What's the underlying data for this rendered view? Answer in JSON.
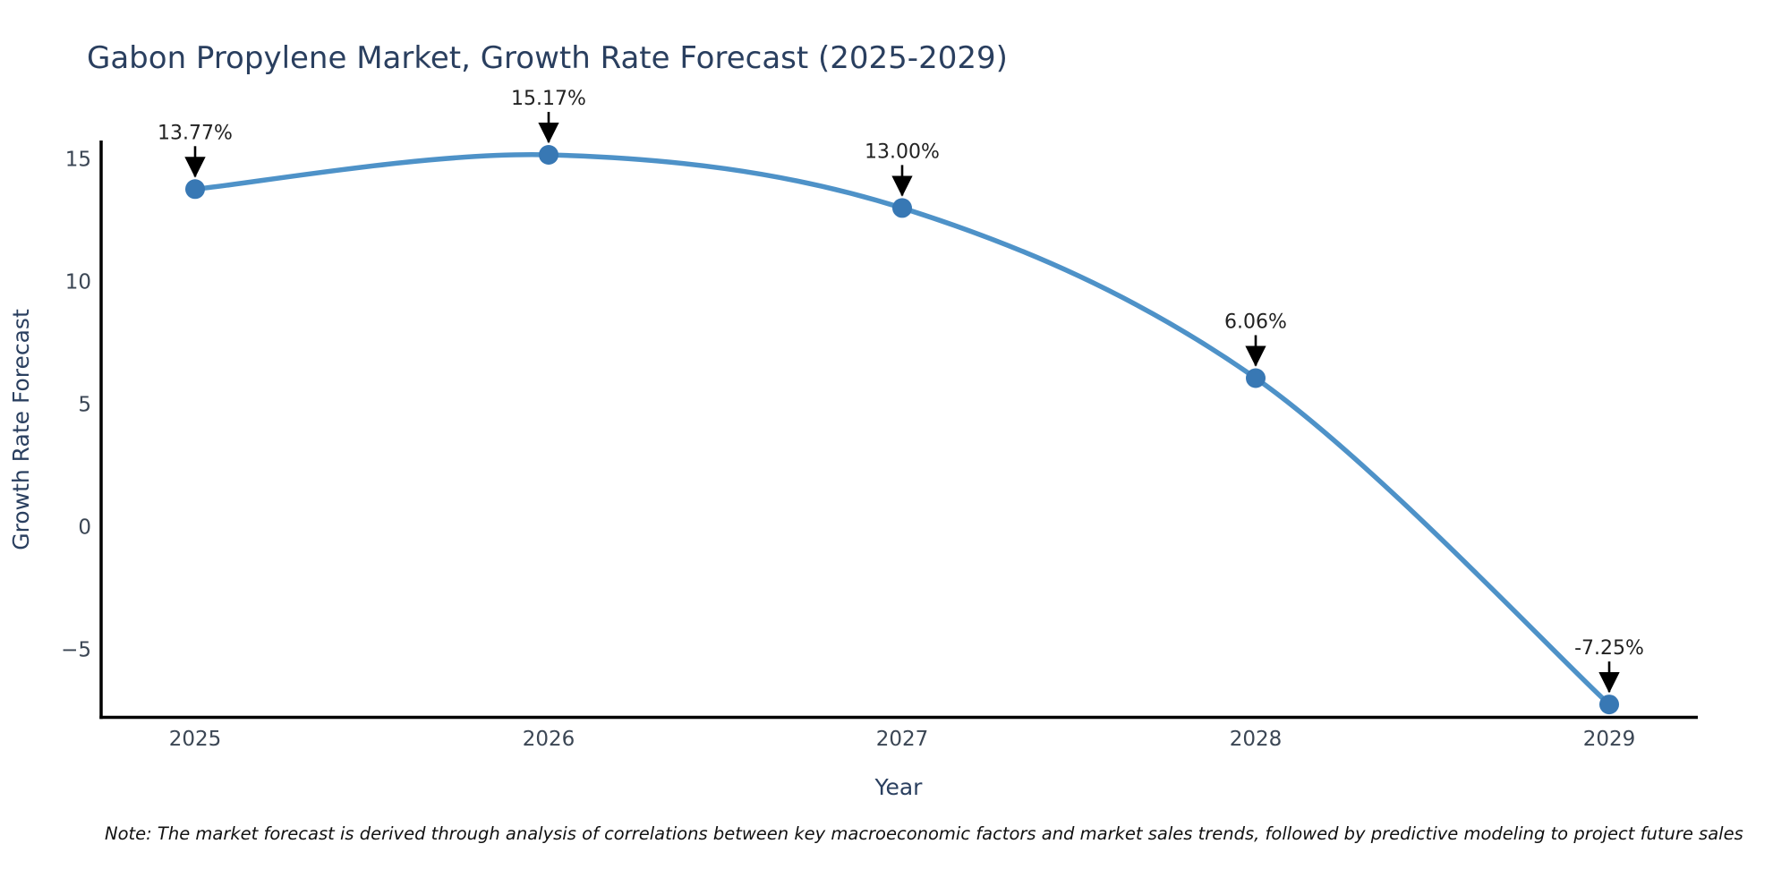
{
  "title": "Gabon Propylene Market, Growth Rate Forecast (2025-2029)",
  "note": "Note: The market forecast is derived through analysis of correlations between key macroeconomic factors and market sales trends, followed by predictive modeling to project future sales",
  "chart_data": {
    "type": "line",
    "title": "Gabon Propylene Market, Growth Rate Forecast (2025-2029)",
    "xlabel": "Year",
    "ylabel": "Growth Rate Forecast",
    "x": [
      2025,
      2026,
      2027,
      2028,
      2029
    ],
    "xtick_labels": [
      "2025",
      "2026",
      "2027",
      "2028",
      "2029"
    ],
    "values": [
      13.77,
      15.17,
      13.0,
      6.06,
      -7.25
    ],
    "point_labels": [
      "13.77%",
      "15.17%",
      "13.00%",
      "6.06%",
      "-7.25%"
    ],
    "ytick_values": [
      15,
      10,
      5,
      0,
      -5
    ],
    "ytick_labels": [
      "15",
      "10",
      "5",
      "0",
      "−5"
    ],
    "ylim": [
      -8.5,
      16.5
    ],
    "line_shape": "spline",
    "grid": false,
    "legend_position": "none",
    "colors": {
      "line": "#4e92c8",
      "marker": "#3878b4",
      "axis": "#000000",
      "tick_text": "#3b4654",
      "title_text": "#2a3f5f",
      "annotation_text": "#222222",
      "arrow": "#000000",
      "background": "#ffffff"
    }
  }
}
